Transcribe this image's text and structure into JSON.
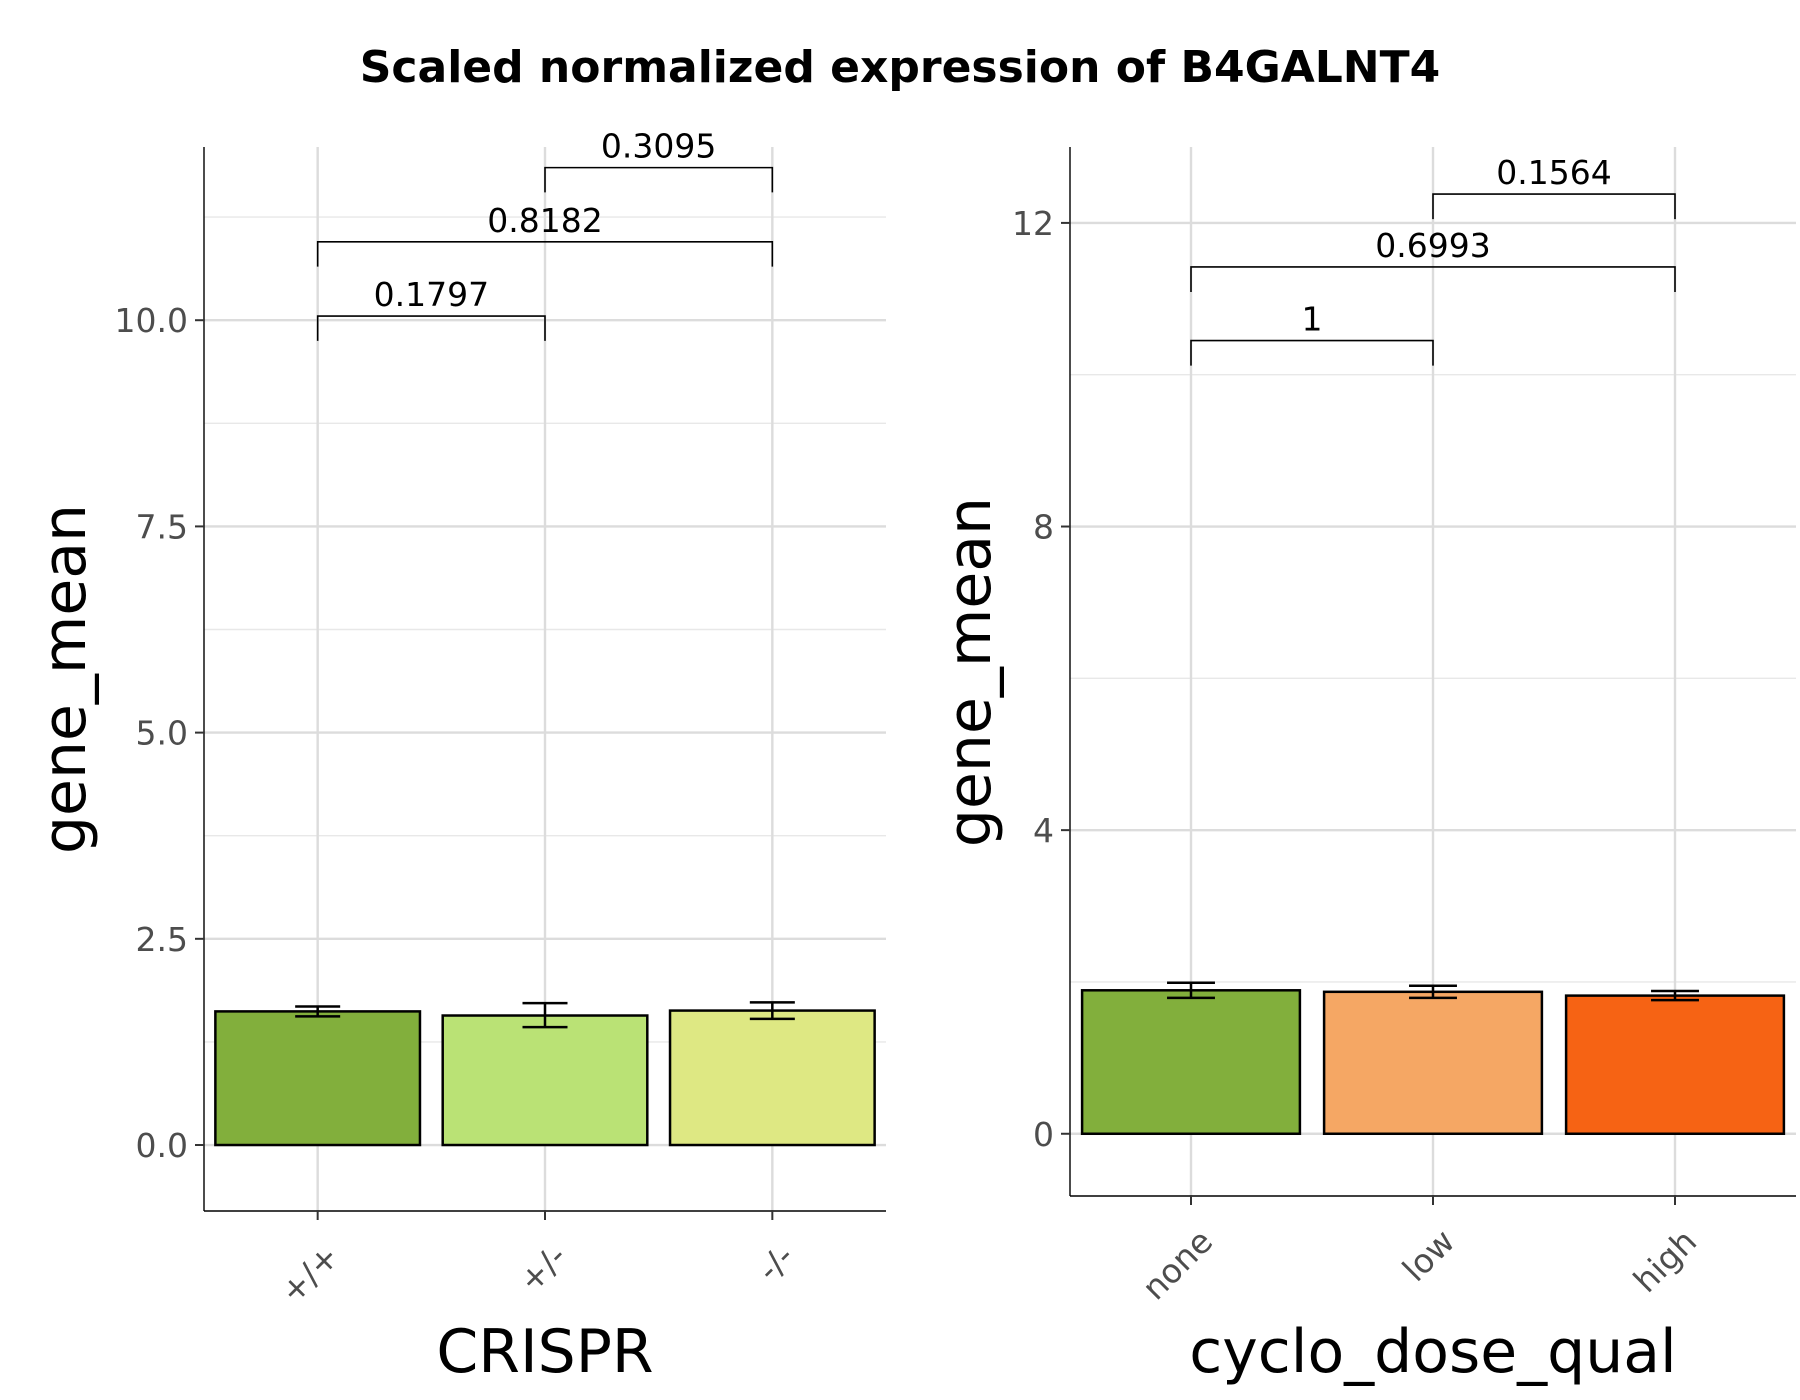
{
  "title": "Scaled normalized expression of B4GALNT4",
  "chart_data": [
    {
      "type": "bar",
      "xlabel": "CRISPR",
      "ylabel": "gene_mean",
      "ylim": [
        -0.8,
        12.1
      ],
      "yticks": [
        0.0,
        2.5,
        5.0,
        7.5,
        10.0
      ],
      "ytick_labels": [
        "0.0",
        "2.5",
        "5.0",
        "7.5",
        "10.0"
      ],
      "minor_yticks": [
        1.25,
        3.75,
        6.25,
        8.75,
        11.25
      ],
      "categories": [
        "+/+",
        "+/-",
        "-/-"
      ],
      "values": [
        1.62,
        1.57,
        1.63
      ],
      "error_low": [
        1.56,
        1.43,
        1.53
      ],
      "error_high": [
        1.68,
        1.72,
        1.73
      ],
      "colors": [
        "#82AF3C",
        "#BAE275",
        "#DEE883"
      ],
      "comparisons": [
        {
          "from": 0,
          "to": 1,
          "label": "0.1797",
          "y": 10.05,
          "tick_bottom": 9.75
        },
        {
          "from": 0,
          "to": 2,
          "label": "0.8182",
          "y": 10.95,
          "tick_bottom": 10.65
        },
        {
          "from": 1,
          "to": 2,
          "label": "0.3095",
          "y": 11.85,
          "tick_bottom": 11.55
        }
      ],
      "grid": true
    },
    {
      "type": "bar",
      "xlabel": "cyclo_dose_qual",
      "ylabel": "gene_mean",
      "ylim": [
        -0.82,
        13.0
      ],
      "yticks": [
        0,
        4,
        8,
        12
      ],
      "ytick_labels": [
        "0",
        "4",
        "8",
        "12"
      ],
      "minor_yticks": [
        2,
        6,
        10
      ],
      "categories": [
        "none",
        "low",
        "high"
      ],
      "values": [
        1.89,
        1.87,
        1.82
      ],
      "error_low": [
        1.79,
        1.79,
        1.76
      ],
      "error_high": [
        1.99,
        1.95,
        1.88
      ],
      "colors": [
        "#82AF3C",
        "#F5A764",
        "#F66314"
      ],
      "comparisons": [
        {
          "from": 0,
          "to": 1,
          "label": "1",
          "y": 10.45,
          "tick_bottom": 10.12
        },
        {
          "from": 0,
          "to": 2,
          "label": "0.6993",
          "y": 11.42,
          "tick_bottom": 11.09
        },
        {
          "from": 1,
          "to": 2,
          "label": "0.1564",
          "y": 12.38,
          "tick_bottom": 12.05
        }
      ],
      "grid": true
    }
  ]
}
